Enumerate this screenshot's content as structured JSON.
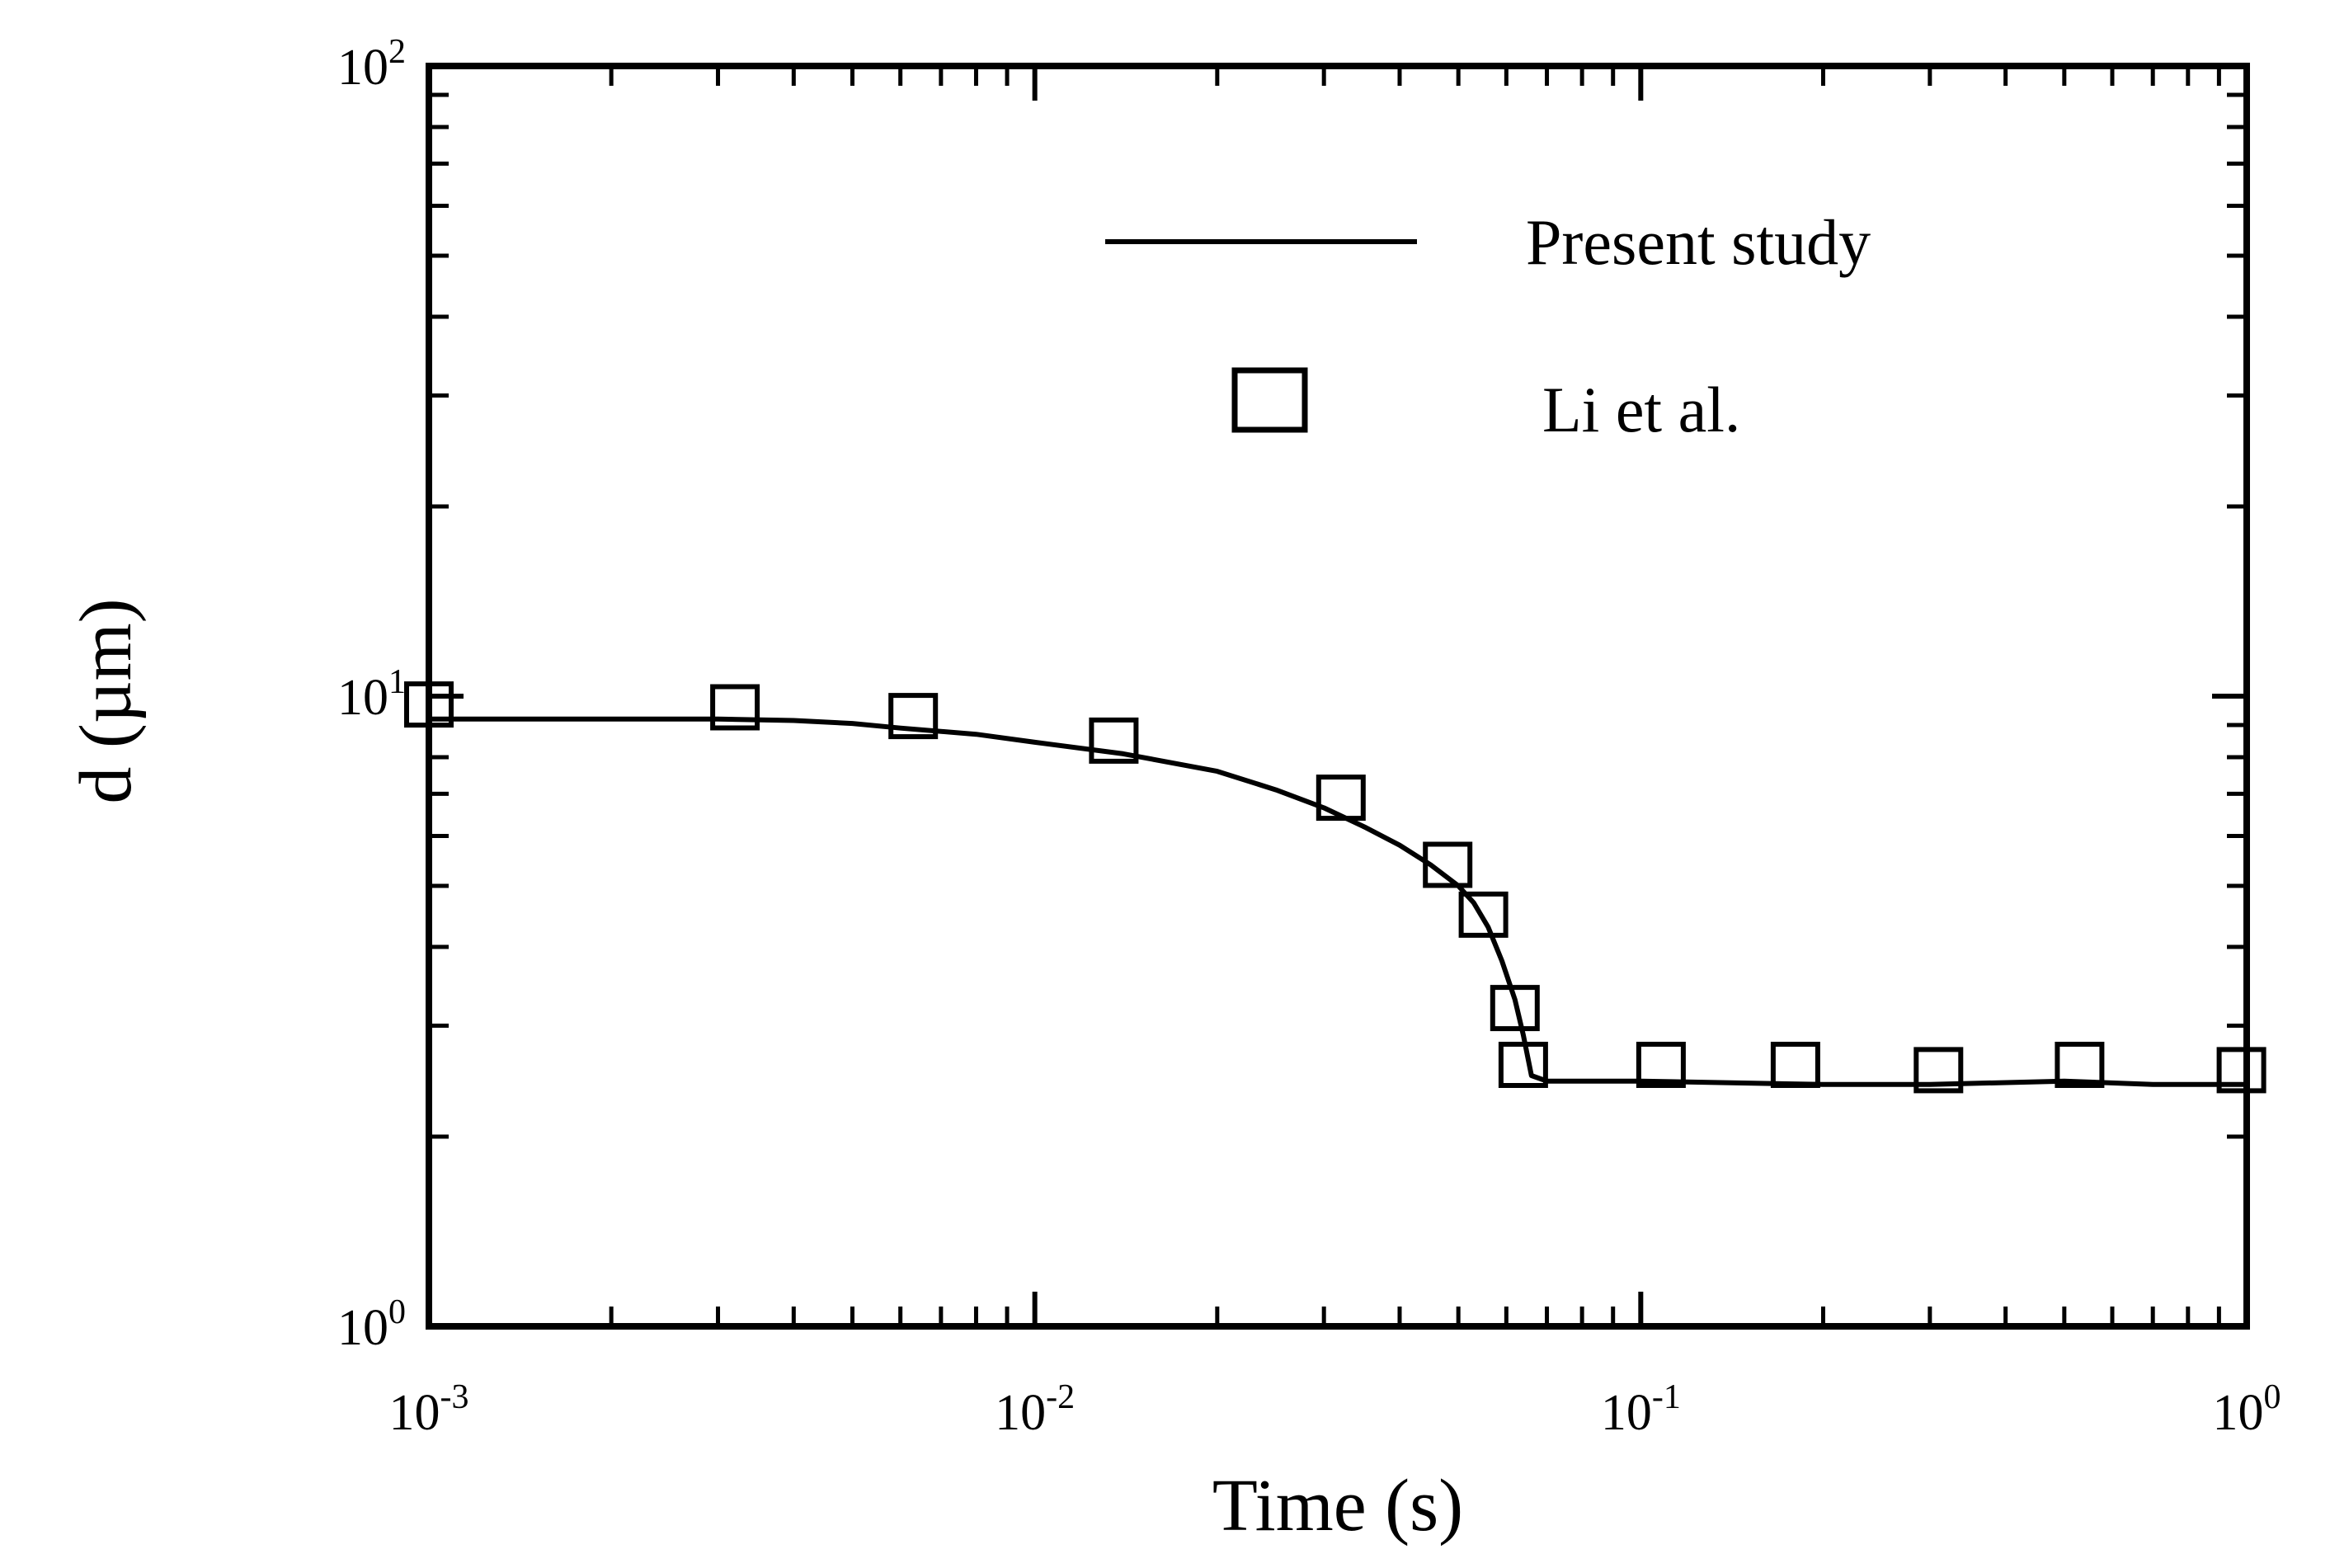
{
  "chart_data": {
    "type": "line",
    "title": "",
    "xlabel": "Time (s)",
    "ylabel": "d (µm)",
    "xscale": "log",
    "yscale": "log",
    "xlim": [
      0.001,
      1
    ],
    "ylim": [
      1,
      100
    ],
    "x_ticks": [
      {
        "base": "10",
        "exp": "-3",
        "value": 0.001
      },
      {
        "base": "10",
        "exp": "-2",
        "value": 0.01
      },
      {
        "base": "10",
        "exp": "-1",
        "value": 0.1
      },
      {
        "base": "10",
        "exp": "0",
        "value": 1
      }
    ],
    "y_ticks": [
      {
        "base": "10",
        "exp": "0",
        "value": 1
      },
      {
        "base": "10",
        "exp": "1",
        "value": 10
      },
      {
        "base": "10",
        "exp": "2",
        "value": 100
      }
    ],
    "legend_position": "top-right",
    "series": [
      {
        "name": "Present study",
        "kind": "line",
        "color": "#000000",
        "x": [
          0.001,
          0.002,
          0.003,
          0.004,
          0.005,
          0.006,
          0.008,
          0.01,
          0.014,
          0.02,
          0.025,
          0.03,
          0.035,
          0.04,
          0.045,
          0.05,
          0.053,
          0.056,
          0.059,
          0.062,
          0.064,
          0.066,
          0.07,
          0.1,
          0.2,
          0.3,
          0.5,
          0.7,
          1.0
        ],
        "y": [
          9.2,
          9.2,
          9.2,
          9.15,
          9.05,
          8.9,
          8.7,
          8.45,
          8.1,
          7.6,
          7.1,
          6.65,
          6.2,
          5.8,
          5.4,
          5.0,
          4.7,
          4.3,
          3.8,
          3.3,
          2.9,
          2.5,
          2.45,
          2.45,
          2.42,
          2.42,
          2.45,
          2.42,
          2.42
        ]
      },
      {
        "name": "Li et al.",
        "kind": "marker",
        "marker": "open-square",
        "color": "#000000",
        "x": [
          0.001,
          0.0032,
          0.0063,
          0.0135,
          0.032,
          0.048,
          0.055,
          0.062,
          0.064,
          0.108,
          0.18,
          0.31,
          0.53,
          0.98
        ],
        "y": [
          9.7,
          9.6,
          9.3,
          8.5,
          6.9,
          5.4,
          4.5,
          3.2,
          2.6,
          2.6,
          2.6,
          2.55,
          2.6,
          2.55
        ]
      }
    ]
  }
}
